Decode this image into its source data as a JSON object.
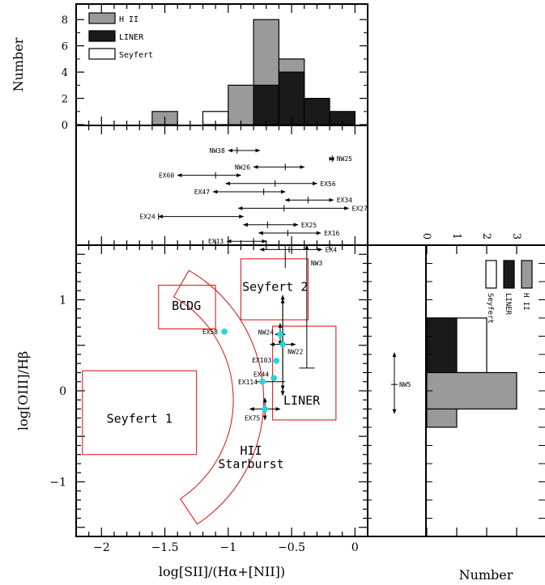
{
  "chart_data": [
    {
      "type": "bar",
      "name": "top-histogram",
      "ylabel": "Number",
      "ylim": [
        0,
        9
      ],
      "yticks": [
        "0",
        "2",
        "4",
        "6",
        "8"
      ],
      "bin_width": 0.2,
      "legend": [
        {
          "label": "H II",
          "color": "#9a9a9a"
        },
        {
          "label": "LINER",
          "color": "#1a1a1a"
        },
        {
          "label": "Seyfert",
          "color": "#ffffff"
        }
      ],
      "bars": [
        {
          "x0": -1.6,
          "x1": -1.4,
          "value": 1,
          "series": "H II"
        },
        {
          "x0": -1.2,
          "x1": -1.0,
          "value": 1,
          "series": "Seyfert"
        },
        {
          "x0": -1.0,
          "x1": -0.8,
          "value": 3,
          "series": "H II"
        },
        {
          "x0": -0.8,
          "x1": -0.6,
          "value": 8,
          "series": "H II"
        },
        {
          "x0": -0.8,
          "x1": -0.6,
          "value": 3,
          "series": "LINER"
        },
        {
          "x0": -0.6,
          "x1": -0.4,
          "value": 5,
          "series": "H II"
        },
        {
          "x0": -0.6,
          "x1": -0.4,
          "value": 4,
          "series": "LINER"
        },
        {
          "x0": -0.4,
          "x1": -0.2,
          "value": 2,
          "series": "LINER"
        },
        {
          "x0": -0.2,
          "x1": 0.0,
          "value": 1,
          "series": "LINER"
        }
      ]
    },
    {
      "type": "scatter",
      "name": "range-panel",
      "ranges": [
        {
          "label": "NW38",
          "x0": -1.0,
          "x1": -0.75,
          "mark": -0.93
        },
        {
          "label": "NW25",
          "x0": -0.2,
          "x1": -0.17,
          "mark": -0.18
        },
        {
          "label": "NW26",
          "x0": -0.8,
          "x1": -0.4,
          "mark": -0.55
        },
        {
          "label": "EX60",
          "x0": -1.4,
          "x1": -0.9,
          "mark": -1.1
        },
        {
          "label": "EX56",
          "x0": -1.02,
          "x1": -0.3,
          "mark": -0.63
        },
        {
          "label": "EX47",
          "x0": -1.12,
          "x1": -0.55,
          "mark": -0.72
        },
        {
          "label": "EX34",
          "x0": -0.55,
          "x1": -0.17,
          "mark": -0.37
        },
        {
          "label": "EX27",
          "x0": -0.92,
          "x1": -0.05,
          "mark": -0.56
        },
        {
          "label": "EX24",
          "x0": -1.55,
          "x1": -0.88,
          "mark": -1.55
        },
        {
          "label": "EX25",
          "x0": -0.88,
          "x1": -0.45,
          "mark": -0.69
        },
        {
          "label": "EX16",
          "x0": -0.76,
          "x1": -0.27,
          "mark": -0.53
        },
        {
          "label": "EX13",
          "x0": -1.01,
          "x1": -0.7,
          "mark": -0.8
        },
        {
          "label": "EX4",
          "x0": -0.75,
          "x1": -0.26,
          "mark": -0.52
        }
      ]
    },
    {
      "type": "scatter",
      "name": "diagnostic-diagram",
      "xlabel": "log[SII]/(Hα+[NII])",
      "ylabel": "log[OIII]/Hβ",
      "xlim": [
        -2.2,
        0.1
      ],
      "ylim": [
        -1.6,
        1.6
      ],
      "xticks": [
        "−2",
        "−1.5",
        "−1",
        "−0.5",
        "0"
      ],
      "yticks": [
        "−1",
        "0",
        "1"
      ],
      "regions": [
        {
          "label": "Seyfert 2",
          "x0": -0.9,
          "x1": -0.37,
          "y0": 0.78,
          "y1": 1.45
        },
        {
          "label": "BCDG",
          "x0": -1.55,
          "x1": -1.1,
          "y0": 0.68,
          "y1": 1.16
        },
        {
          "label": "LINER",
          "x0": -0.65,
          "x1": -0.15,
          "y0": -0.32,
          "y1": 0.71
        },
        {
          "label": "Seyfert 1",
          "x0": -2.15,
          "x1": -1.25,
          "y0": -0.7,
          "y1": 0.22
        },
        {
          "label": "HII Starburst"
        }
      ],
      "points": [
        {
          "label": "EX58",
          "x": -1.03,
          "y": 0.65
        },
        {
          "label": "NW24",
          "x": -0.59,
          "y": 0.62
        },
        {
          "label": "NW22",
          "x": -0.57,
          "y": 0.51
        },
        {
          "label": "EX103",
          "x": -0.62,
          "y": 0.33
        },
        {
          "label": "EX44",
          "x": -0.64,
          "y": 0.14
        },
        {
          "label": "EX114",
          "x": -0.73,
          "y": 0.1
        },
        {
          "label": "EX75",
          "x": -0.71,
          "y": -0.2
        }
      ],
      "arrows": [
        {
          "label": "NW3"
        }
      ]
    },
    {
      "type": "scatter",
      "name": "right-range-panel",
      "ranges": [
        {
          "label": "NW5",
          "y0": -0.25,
          "y1": 0.42,
          "mark": 0.07
        }
      ]
    },
    {
      "type": "bar",
      "name": "right-histogram",
      "xlabel": "Number",
      "xticks": [
        "0",
        "1",
        "2",
        "3"
      ],
      "bars": [
        {
          "y0": 0.2,
          "y1": 0.8,
          "value": 2,
          "series": "Seyfert"
        },
        {
          "y0": -0.2,
          "y1": 0.8,
          "value": 1,
          "series": "LINER"
        },
        {
          "y0": -0.2,
          "y1": 0.2,
          "value": 3,
          "series": "H II"
        },
        {
          "y0": -0.4,
          "y1": -0.2,
          "value": 1,
          "series": "H II"
        }
      ]
    }
  ]
}
